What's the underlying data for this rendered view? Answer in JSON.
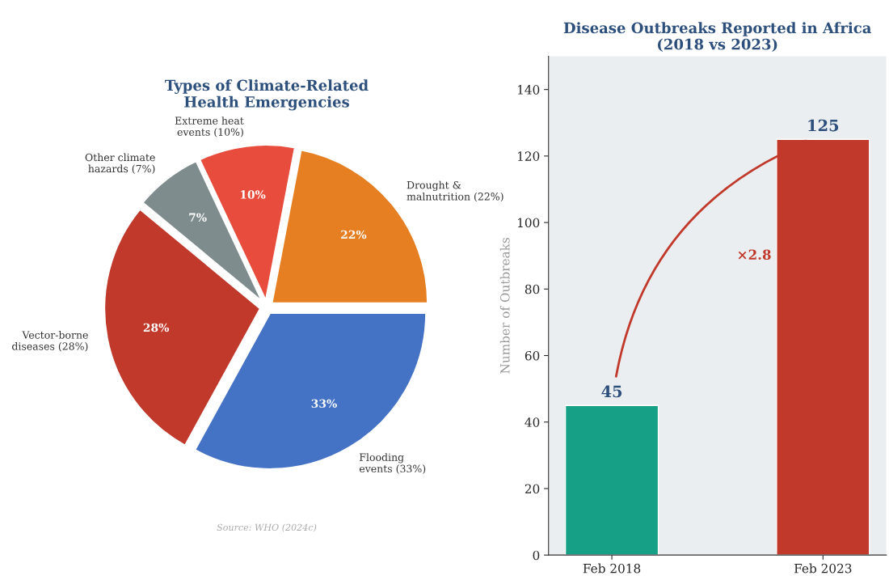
{
  "chart_data": [
    {
      "type": "pie",
      "title": "Types of Climate-Related\nHealth Emergencies",
      "categories": [
        "Drought &\nmalnutrition (22%)",
        "Extreme heat\nevents (10%)",
        "Other climate\nhazards (7%)",
        "Vector-borne\ndiseases (28%)",
        "Flooding\nevents (33%)"
      ],
      "values": [
        22,
        10,
        7,
        28,
        33
      ],
      "colors": [
        "#e67e22",
        "#e74c3c",
        "#7f8c8d",
        "#c0392b",
        "#4472c4"
      ],
      "value_labels": [
        "22%",
        "10%",
        "7%",
        "28%",
        "33%"
      ],
      "annotations": [
        "Source: WHO (2024c)"
      ]
    },
    {
      "type": "bar",
      "title": "Disease Outbreaks Reported in Africa\n(2018 vs 2023)",
      "categories": [
        "Feb 2018",
        "Feb 2023"
      ],
      "values": [
        45,
        125
      ],
      "colors": [
        "#16a085",
        "#c0392b"
      ],
      "ylabel": "Number of Outbreaks",
      "ylim": [
        0,
        150
      ],
      "yticks": [
        0,
        20,
        40,
        60,
        80,
        100,
        120,
        140
      ],
      "data_labels": true,
      "grid": false,
      "annotations": [
        "×2.8"
      ]
    }
  ]
}
